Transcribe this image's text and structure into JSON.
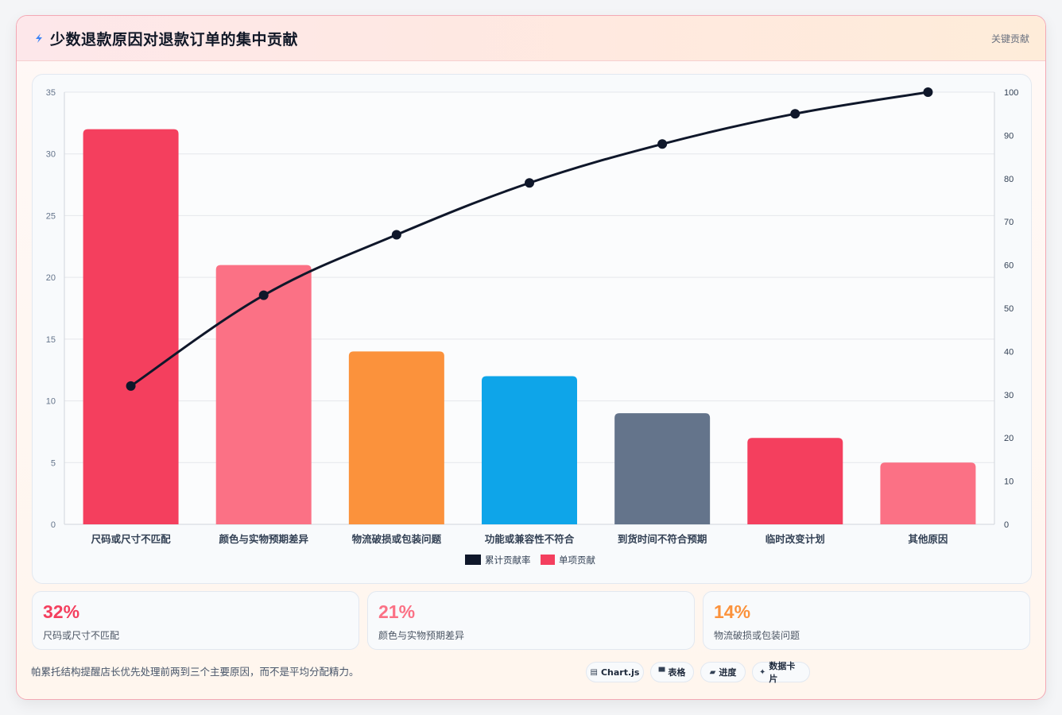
{
  "header": {
    "title": "少数退款原因对退款订单的集中贡献",
    "tag": "关键贡献",
    "icon": "lightning-icon"
  },
  "chart_data": {
    "type": "bar",
    "categories": [
      "尺码或尺寸不匹配",
      "颜色与实物预期差异",
      "物流破损或包装问题",
      "功能或兼容性不符合",
      "到货时间不符合预期",
      "临时改变计划",
      "其他原因"
    ],
    "series": [
      {
        "name": "单项贡献",
        "type": "bar",
        "axis": "left",
        "values": [
          32,
          21,
          14,
          12,
          9,
          7,
          5
        ],
        "colors": [
          "#f43f5e",
          "#fb7185",
          "#fb923c",
          "#0ea5e9",
          "#64748b",
          "#f43f5e",
          "#fb7185"
        ]
      },
      {
        "name": "累计贡献率",
        "type": "line",
        "axis": "right",
        "values": [
          32,
          53,
          67,
          79,
          88,
          95,
          100
        ],
        "color": "#0f172a"
      }
    ],
    "y_left": {
      "min": 0,
      "max": 35,
      "ticks": [
        0,
        5,
        10,
        15,
        20,
        25,
        30,
        35
      ]
    },
    "y_right": {
      "min": 0,
      "max": 100,
      "ticks": [
        0,
        10,
        20,
        30,
        40,
        50,
        60,
        70,
        80,
        90,
        100
      ]
    },
    "grid": true,
    "legend_position": "bottom"
  },
  "stats": [
    {
      "value": "32%",
      "label": "尺码或尺寸不匹配",
      "color": "#f43f5e"
    },
    {
      "value": "21%",
      "label": "颜色与实物预期差异",
      "color": "#fb7185"
    },
    {
      "value": "14%",
      "label": "物流破损或包装问题",
      "color": "#fb923c"
    }
  ],
  "footer": {
    "note": "帕累托结构提醒店长优先处理前两到三个主要原因，而不是平均分配精力。",
    "chips": [
      {
        "icon": "chart-icon",
        "glyph": "▤",
        "label": "Chart.js"
      },
      {
        "icon": "table-icon",
        "glyph": "▀",
        "label": "表格"
      },
      {
        "icon": "progress-icon",
        "glyph": "▰",
        "label": "进度"
      },
      {
        "icon": "sparkle-icon",
        "glyph": "✦",
        "label": "数据卡片"
      }
    ]
  }
}
